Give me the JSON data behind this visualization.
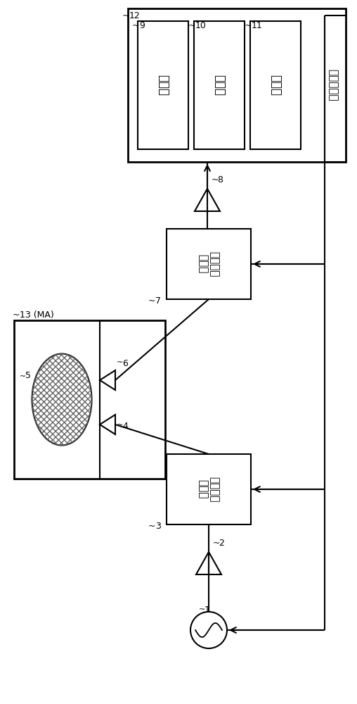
{
  "bg_color": "#ffffff",
  "texts": {
    "cpu_label": "微型计算机",
    "calc": "运算部",
    "storage": "存储部",
    "control": "控制部",
    "rx_ant_line1": "接收天线",
    "rx_ant_line2": "控制部",
    "tx_ant_line1": "发送天线",
    "tx_ant_line2": "控制部"
  }
}
